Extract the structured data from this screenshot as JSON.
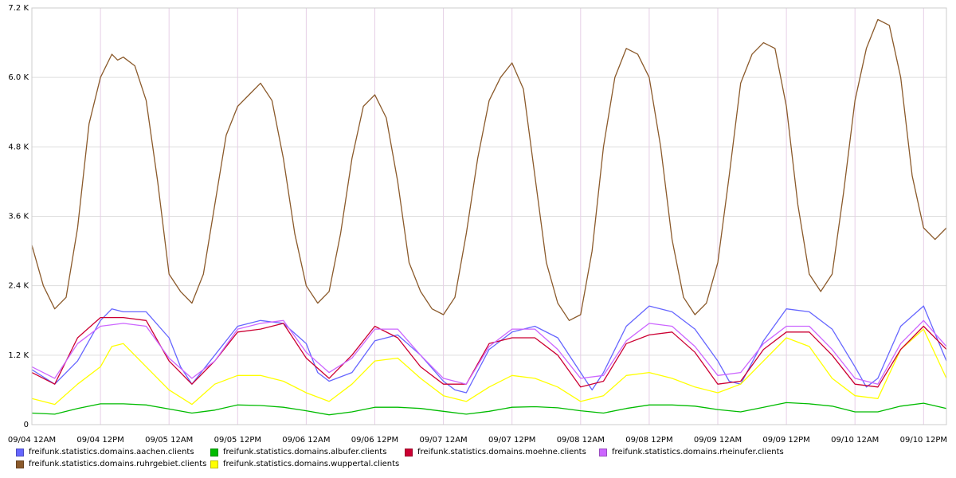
{
  "chart_data": {
    "type": "line",
    "title": "",
    "xlabel": "",
    "ylabel": "",
    "ylim": [
      0,
      7200
    ],
    "y_ticks": [
      {
        "value": 0,
        "label": "0"
      },
      {
        "value": 1200,
        "label": "1.2 K"
      },
      {
        "value": 2400,
        "label": "2.4 K"
      },
      {
        "value": 3600,
        "label": "3.6 K"
      },
      {
        "value": 4800,
        "label": "4.8 K"
      },
      {
        "value": 6000,
        "label": "6.0 K"
      },
      {
        "value": 7200,
        "label": "7.2 K"
      }
    ],
    "x_range_hours": [
      0,
      160
    ],
    "x_ticks": [
      {
        "hour": 0,
        "label": "09/04 12AM"
      },
      {
        "hour": 12,
        "label": "09/04 12PM"
      },
      {
        "hour": 24,
        "label": "09/05 12AM"
      },
      {
        "hour": 36,
        "label": "09/05 12PM"
      },
      {
        "hour": 48,
        "label": "09/06 12AM"
      },
      {
        "hour": 60,
        "label": "09/06 12PM"
      },
      {
        "hour": 72,
        "label": "09/07 12AM"
      },
      {
        "hour": 84,
        "label": "09/07 12PM"
      },
      {
        "hour": 96,
        "label": "09/08 12AM"
      },
      {
        "hour": 108,
        "label": "09/08 12PM"
      },
      {
        "hour": 120,
        "label": "09/09 12AM"
      },
      {
        "hour": 132,
        "label": "09/09 12PM"
      },
      {
        "hour": 144,
        "label": "09/10 12AM"
      },
      {
        "hour": 156,
        "label": "09/10 12PM"
      }
    ],
    "grid": true,
    "legend_position": "bottom",
    "x_unit_note": "",
    "series": [
      {
        "name": "freifunk.statistics.domains.aachen.clients",
        "color": "#6666ff",
        "x": [
          0,
          4,
          8,
          12,
          14,
          16,
          20,
          24,
          26,
          28,
          32,
          36,
          40,
          44,
          48,
          50,
          52,
          56,
          60,
          64,
          68,
          72,
          74,
          76,
          80,
          84,
          88,
          92,
          96,
          98,
          100,
          104,
          108,
          112,
          116,
          120,
          122,
          124,
          128,
          132,
          136,
          140,
          144,
          146,
          148,
          152,
          156,
          160
        ],
        "y": [
          950,
          700,
          1100,
          1800,
          2000,
          1950,
          1950,
          1500,
          1000,
          700,
          1200,
          1700,
          1800,
          1750,
          1400,
          900,
          750,
          900,
          1450,
          1550,
          1200,
          750,
          600,
          550,
          1300,
          1600,
          1700,
          1500,
          900,
          600,
          900,
          1700,
          2050,
          1950,
          1650,
          1100,
          750,
          700,
          1450,
          2000,
          1950,
          1650,
          1000,
          650,
          800,
          1700,
          2050,
          1100
        ]
      },
      {
        "name": "freifunk.statistics.domains.ruhrgebiet.clients",
        "color": "#8b5a2b",
        "x": [
          0,
          2,
          4,
          6,
          8,
          10,
          12,
          14,
          15,
          16,
          18,
          20,
          22,
          24,
          26,
          28,
          30,
          32,
          34,
          36,
          38,
          40,
          42,
          44,
          46,
          48,
          50,
          52,
          54,
          56,
          58,
          60,
          62,
          64,
          66,
          68,
          70,
          72,
          74,
          76,
          78,
          80,
          82,
          84,
          86,
          88,
          90,
          92,
          94,
          96,
          98,
          100,
          102,
          104,
          106,
          108,
          110,
          112,
          114,
          116,
          118,
          120,
          122,
          124,
          126,
          128,
          130,
          132,
          134,
          136,
          138,
          140,
          142,
          144,
          146,
          148,
          150,
          152,
          154,
          156,
          158,
          160
        ],
        "y": [
          3100,
          2400,
          2000,
          2200,
          3400,
          5200,
          6000,
          6400,
          6300,
          6350,
          6200,
          5600,
          4200,
          2600,
          2300,
          2100,
          2600,
          3800,
          5000,
          5500,
          5700,
          5900,
          5600,
          4600,
          3300,
          2400,
          2100,
          2300,
          3300,
          4600,
          5500,
          5700,
          5300,
          4200,
          2800,
          2300,
          2000,
          1900,
          2200,
          3300,
          4600,
          5600,
          6000,
          6250,
          5800,
          4300,
          2800,
          2100,
          1800,
          1900,
          3000,
          4800,
          6000,
          6500,
          6400,
          6000,
          4800,
          3200,
          2200,
          1900,
          2100,
          2800,
          4300,
          5900,
          6400,
          6600,
          6500,
          5500,
          3800,
          2600,
          2300,
          2600,
          4000,
          5600,
          6500,
          7000,
          6900,
          6000,
          4300,
          3400,
          3200,
          3400
        ]
      },
      {
        "name": "freifunk.statistics.domains.albufer.clients",
        "color": "#00bb00",
        "x": [
          0,
          4,
          8,
          12,
          16,
          20,
          24,
          28,
          32,
          36,
          40,
          44,
          48,
          52,
          56,
          60,
          64,
          68,
          72,
          76,
          80,
          84,
          88,
          92,
          96,
          100,
          104,
          108,
          112,
          116,
          120,
          124,
          128,
          132,
          136,
          140,
          144,
          148,
          152,
          156,
          160
        ],
        "y": [
          200,
          180,
          280,
          360,
          360,
          340,
          270,
          200,
          250,
          340,
          330,
          300,
          240,
          170,
          220,
          300,
          300,
          280,
          230,
          180,
          230,
          300,
          310,
          290,
          240,
          200,
          280,
          340,
          340,
          320,
          260,
          220,
          300,
          380,
          360,
          320,
          220,
          220,
          320,
          370,
          280
        ]
      },
      {
        "name": "freifunk.statistics.domains.wuppertal.clients",
        "color": "#ffff00",
        "x": [
          0,
          4,
          8,
          12,
          14,
          16,
          20,
          24,
          28,
          32,
          36,
          40,
          44,
          48,
          52,
          56,
          60,
          64,
          68,
          72,
          76,
          80,
          84,
          88,
          92,
          96,
          100,
          104,
          108,
          112,
          116,
          120,
          124,
          128,
          132,
          136,
          140,
          144,
          148,
          152,
          156,
          160
        ],
        "y": [
          450,
          350,
          700,
          1000,
          1350,
          1400,
          1000,
          600,
          350,
          700,
          850,
          850,
          750,
          550,
          400,
          700,
          1100,
          1150,
          800,
          500,
          400,
          650,
          850,
          800,
          650,
          400,
          500,
          850,
          900,
          800,
          650,
          550,
          700,
          1100,
          1500,
          1350,
          800,
          500,
          450,
          1300,
          1650,
          800
        ]
      },
      {
        "name": "freifunk.statistics.domains.moehne.clients",
        "color": "#cc0033",
        "x": [
          0,
          4,
          8,
          12,
          16,
          20,
          24,
          28,
          32,
          36,
          40,
          44,
          48,
          52,
          56,
          60,
          64,
          68,
          72,
          76,
          80,
          84,
          88,
          92,
          96,
          100,
          104,
          108,
          112,
          116,
          120,
          124,
          128,
          132,
          136,
          140,
          144,
          148,
          152,
          156,
          160
        ],
        "y": [
          900,
          700,
          1500,
          1850,
          1850,
          1800,
          1100,
          700,
          1100,
          1600,
          1650,
          1750,
          1150,
          800,
          1200,
          1700,
          1500,
          1000,
          700,
          700,
          1400,
          1500,
          1500,
          1200,
          650,
          750,
          1400,
          1550,
          1600,
          1250,
          700,
          750,
          1300,
          1600,
          1600,
          1200,
          700,
          650,
          1300,
          1700,
          1300
        ]
      },
      {
        "name": "freifunk.statistics.domains.rheinufer.clients",
        "color": "#cc66ff",
        "x": [
          0,
          4,
          8,
          12,
          16,
          20,
          24,
          28,
          32,
          36,
          40,
          44,
          48,
          52,
          56,
          60,
          64,
          68,
          72,
          76,
          80,
          84,
          88,
          92,
          96,
          100,
          104,
          108,
          112,
          116,
          120,
          124,
          128,
          132,
          136,
          140,
          144,
          148,
          152,
          156,
          160
        ],
        "y": [
          1000,
          800,
          1400,
          1700,
          1750,
          1700,
          1150,
          800,
          1100,
          1650,
          1750,
          1800,
          1250,
          900,
          1150,
          1650,
          1650,
          1200,
          800,
          700,
          1350,
          1650,
          1650,
          1300,
          800,
          850,
          1450,
          1750,
          1700,
          1350,
          850,
          900,
          1400,
          1700,
          1700,
          1300,
          800,
          700,
          1400,
          1800,
          1350
        ]
      }
    ]
  }
}
